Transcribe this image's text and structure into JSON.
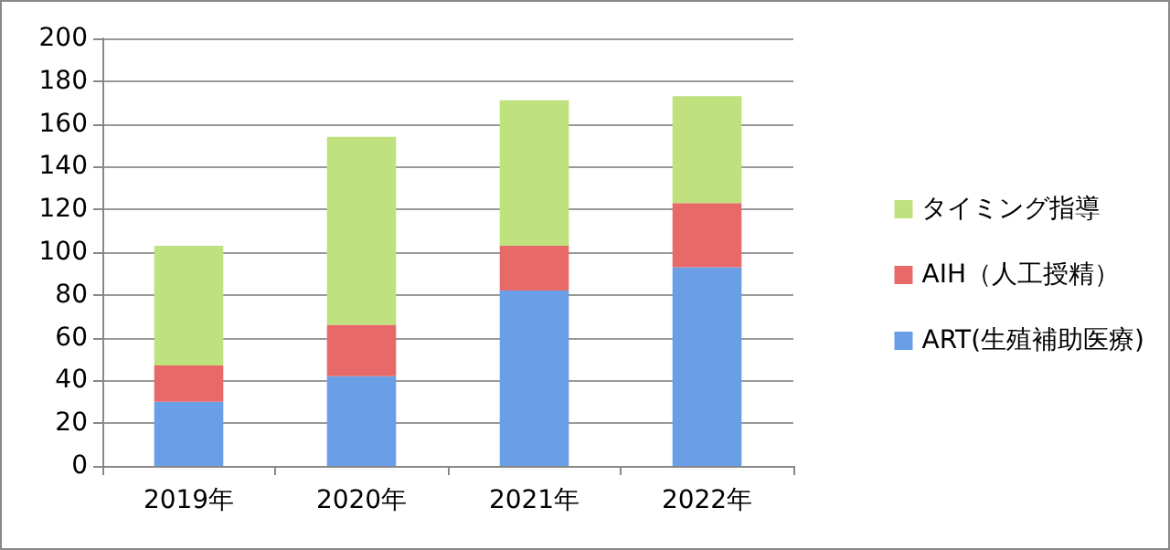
{
  "chart_data": {
    "type": "bar",
    "stacked": true,
    "categories": [
      "2019年",
      "2020年",
      "2021年",
      "2022年"
    ],
    "series": [
      {
        "name": "ART(生殖補助医療)",
        "color": "#6a9ee6",
        "values": [
          30,
          42,
          82,
          93
        ]
      },
      {
        "name": "AIH（人工授精）",
        "color": "#e86a68",
        "values": [
          17,
          24,
          21,
          30
        ]
      },
      {
        "name": "タイミング指導",
        "color": "#bfe27f",
        "values": [
          56,
          88,
          68,
          50
        ]
      }
    ],
    "ylim": [
      0,
      200
    ],
    "yticks": [
      0,
      20,
      40,
      60,
      80,
      100,
      120,
      140,
      160,
      180,
      200
    ],
    "grid": "y",
    "legend": "right"
  }
}
